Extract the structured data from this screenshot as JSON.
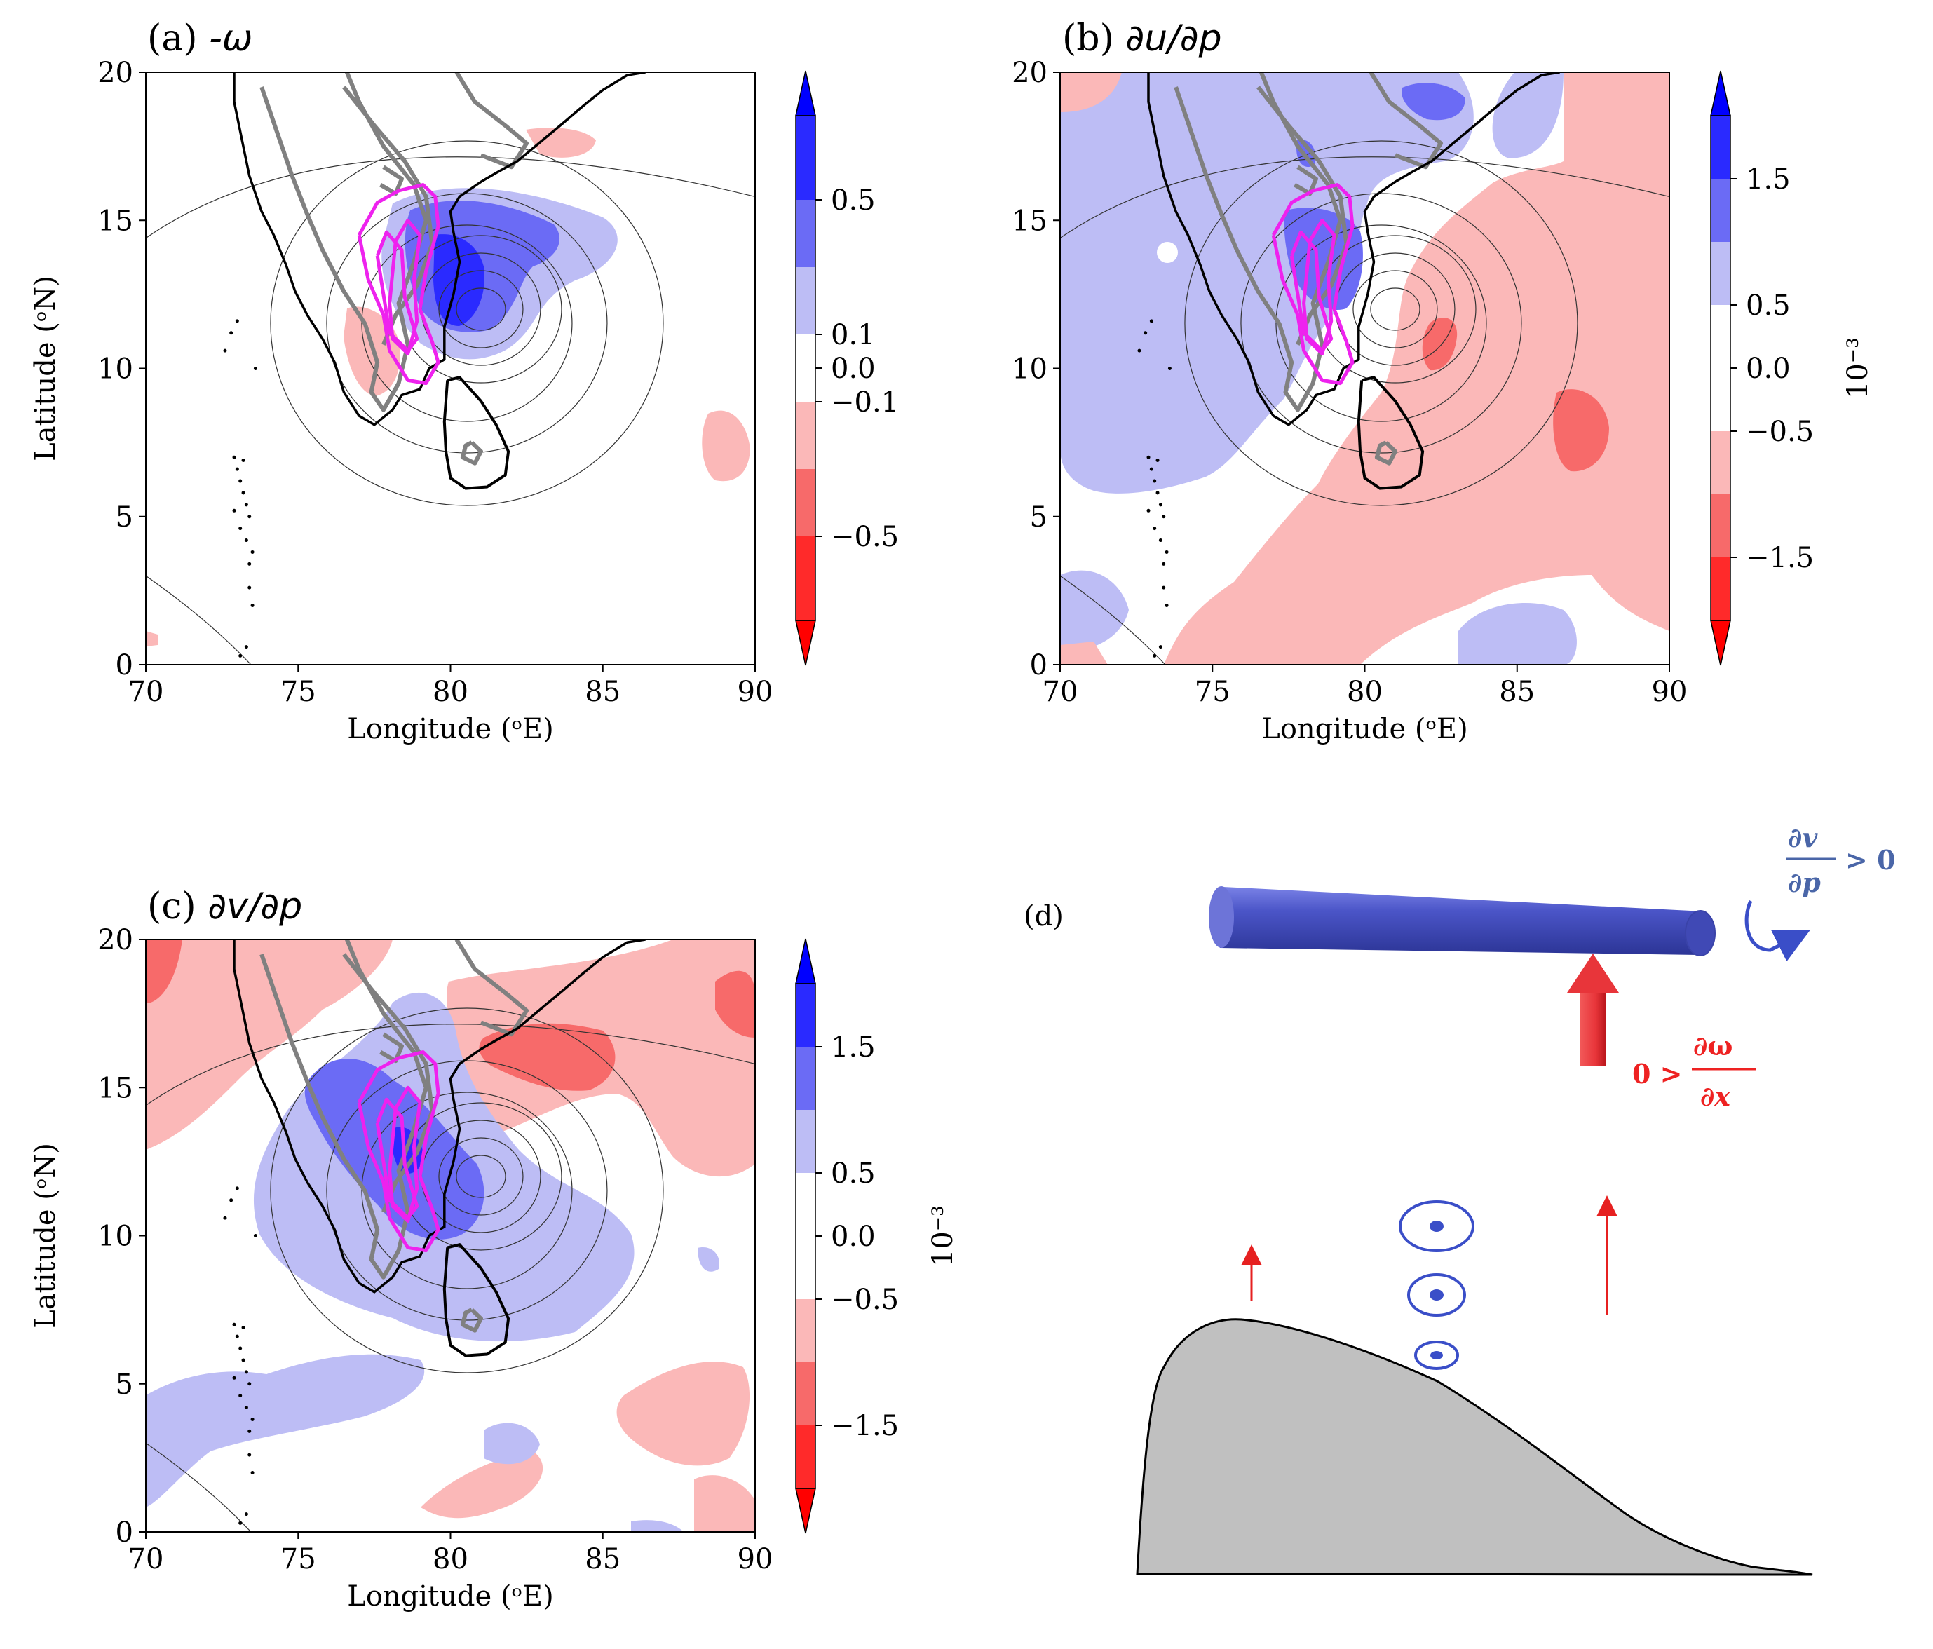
{
  "chart_data": [
    {
      "type": "contour",
      "panel": "(a)",
      "title": "-ω",
      "xlabel": "Longitude (ᵒE)",
      "ylabel": "Latitude (ᵒN)",
      "xlim": [
        70,
        90
      ],
      "ylim": [
        0,
        20
      ],
      "xticks": [
        "70",
        "75",
        "80",
        "85",
        "90"
      ],
      "yticks": [
        "0",
        "5",
        "10",
        "15",
        "20"
      ],
      "colorbar": {
        "levels": [
          -0.75,
          -0.5,
          -0.3,
          -0.1,
          0.1,
          0.3,
          0.5,
          0.75
        ],
        "tick_values": [
          0.5,
          0.1,
          0.0,
          -0.1,
          -0.5
        ],
        "ticks": [
          "0.5",
          "0.1",
          "0.0",
          "−0.1",
          "−0.5"
        ],
        "label": ""
      }
    },
    {
      "type": "contour",
      "panel": "(b)",
      "title": "∂u/∂p",
      "xlabel": "Longitude (ᵒE)",
      "ylabel": "",
      "xlim": [
        70,
        90
      ],
      "ylim": [
        0,
        20
      ],
      "xticks": [
        "70",
        "75",
        "80",
        "85",
        "90"
      ],
      "yticks": [
        "0",
        "5",
        "10",
        "15",
        "20"
      ],
      "colorbar": {
        "levels": [
          -2.0,
          -1.5,
          -1.0,
          -0.5,
          0.5,
          1.0,
          1.5,
          2.0
        ],
        "tick_values": [
          1.5,
          0.5,
          0.0,
          -0.5,
          -1.5
        ],
        "ticks": [
          "1.5",
          "0.5",
          "0.0",
          "−0.5",
          "−1.5"
        ],
        "label": "10⁻³"
      }
    },
    {
      "type": "contour",
      "panel": "(c)",
      "title": "∂v/∂p",
      "xlabel": "Longitude (ᵒE)",
      "ylabel": "Latitude (ᵒN)",
      "xlim": [
        70,
        90
      ],
      "ylim": [
        0,
        20
      ],
      "xticks": [
        "70",
        "75",
        "80",
        "85",
        "90"
      ],
      "yticks": [
        "0",
        "5",
        "10",
        "15",
        "20"
      ],
      "colorbar": {
        "levels": [
          -2.0,
          -1.5,
          -1.0,
          -0.5,
          0.5,
          1.0,
          1.5,
          2.0
        ],
        "tick_values": [
          1.5,
          0.5,
          0.0,
          -0.5,
          -1.5
        ],
        "ticks": [
          "1.5",
          "0.5",
          "0.0",
          "−0.5",
          "−1.5"
        ],
        "label": "10⁻³"
      }
    }
  ],
  "panel_d": {
    "label": "(d)",
    "eq_v_num": "∂v",
    "eq_v_den": "∂p",
    "eq_v_rel": "> 0",
    "eq_w_pre": "0 >",
    "eq_w_num": "∂ω",
    "eq_w_den": "∂x"
  },
  "colors": {
    "blue_strong": "#2a2aff",
    "blue_mid": "#6b6bf5",
    "blue_light": "#bdbdf5",
    "red_light": "#fbb8b8",
    "red_mid": "#f76a6a",
    "red_strong": "#ff2a2a",
    "magenta": "#ee22ee",
    "terrain": "#808080",
    "cylinder": "#4b55c8",
    "arrow_red": "#e8353a",
    "eq_blue": "#4a66a8",
    "eq_red": "#ee2222"
  }
}
